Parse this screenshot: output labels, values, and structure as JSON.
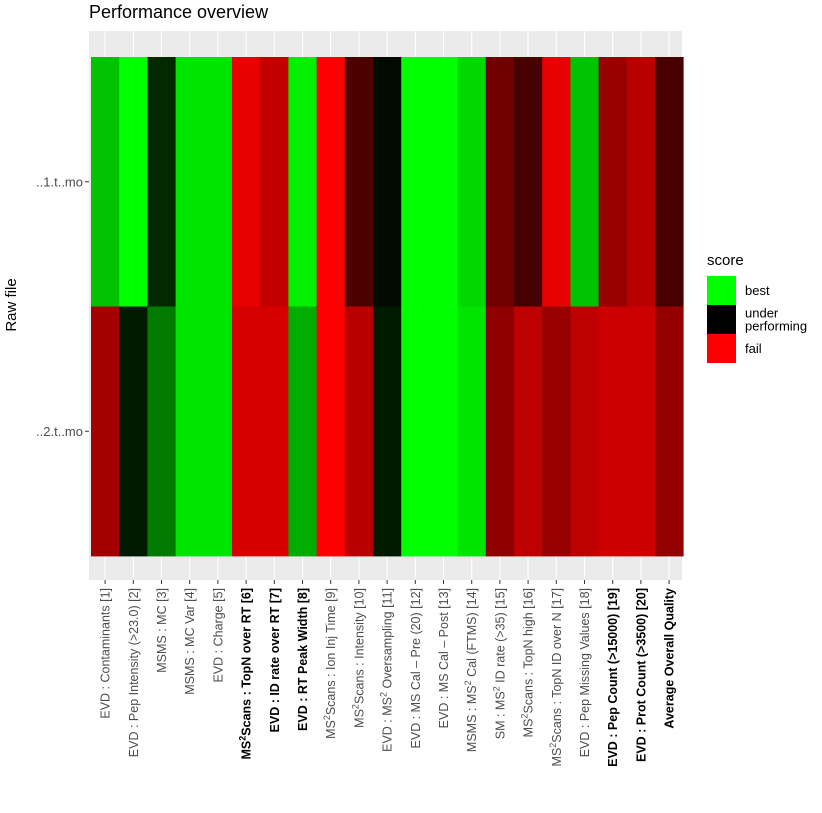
{
  "chart_data": {
    "type": "heatmap",
    "title": "Performance overview",
    "ylabel": "Raw file",
    "xlabel": "",
    "rows": [
      "..1.t..mo",
      "..2.t..mo"
    ],
    "columns": [
      {
        "pre": "EVD : Contaminants [1]",
        "sup": "",
        "post": "",
        "bold": false
      },
      {
        "pre": "EVD : Pep Intensity (>23.0) [2]",
        "sup": "",
        "post": "",
        "bold": false
      },
      {
        "pre": "MSMS : MC [3]",
        "sup": "",
        "post": "",
        "bold": false
      },
      {
        "pre": "MSMS : MC Var [4]",
        "sup": "",
        "post": "",
        "bold": false
      },
      {
        "pre": "EVD : Charge [5]",
        "sup": "",
        "post": "",
        "bold": false
      },
      {
        "pre": "MS",
        "sup": "2",
        "post": "Scans : TopN over RT [6]",
        "bold": true
      },
      {
        "pre": "EVD : ID rate over RT [7]",
        "sup": "",
        "post": "",
        "bold": true
      },
      {
        "pre": "EVD : RT Peak Width [8]",
        "sup": "",
        "post": "",
        "bold": true
      },
      {
        "pre": "MS",
        "sup": "2",
        "post": "Scans : Ion Inj Time [9]",
        "bold": false
      },
      {
        "pre": "MS",
        "sup": "2",
        "post": "Scans : Intensity [10]",
        "bold": false
      },
      {
        "pre": "EVD : MS",
        "sup": "2",
        "post": " Oversampling [11]",
        "bold": false
      },
      {
        "pre": "EVD : MS Cal – Pre (20) [12]",
        "sup": "",
        "post": "",
        "bold": false
      },
      {
        "pre": "EVD : MS Cal – Post [13]",
        "sup": "",
        "post": "",
        "bold": false
      },
      {
        "pre": "MSMS : MS",
        "sup": "2",
        "post": " Cal (FTMS) [14]",
        "bold": false
      },
      {
        "pre": "SM : MS",
        "sup": "2",
        "post": " ID rate (>35) [15]",
        "bold": false
      },
      {
        "pre": "MS",
        "sup": "2",
        "post": "Scans : TopN high [16]",
        "bold": false
      },
      {
        "pre": "MS",
        "sup": "2",
        "post": "Scans : TopN ID over N [17]",
        "bold": false
      },
      {
        "pre": "EVD : Pep Missing Values [18]",
        "sup": "",
        "post": "",
        "bold": false
      },
      {
        "pre": "EVD : Pep Count (>15000) [19]",
        "sup": "",
        "post": "",
        "bold": true
      },
      {
        "pre": "EVD : Prot Count (>3500) [20]",
        "sup": "",
        "post": "",
        "bold": true
      },
      {
        "pre": "Average Overall Quality",
        "sup": "",
        "post": "",
        "bold": true
      }
    ],
    "values": [
      [
        0.88,
        1.0,
        0.58,
        0.95,
        0.95,
        0.05,
        0.12,
        0.97,
        0.0,
        0.35,
        0.52,
        1.0,
        1.0,
        0.92,
        0.28,
        0.36,
        0.05,
        0.88,
        0.2,
        0.14,
        0.36
      ],
      [
        0.18,
        0.55,
        0.74,
        0.95,
        0.95,
        0.08,
        0.08,
        0.84,
        0.0,
        0.14,
        0.55,
        1.0,
        1.0,
        0.95,
        0.22,
        0.13,
        0.2,
        0.13,
        0.1,
        0.1,
        0.21
      ]
    ],
    "value_range": [
      0,
      1
    ],
    "legend": {
      "title": "score",
      "position": "right",
      "entries": [
        {
          "label": "best",
          "color": "#00ff00"
        },
        {
          "label": "under\nperforming",
          "color": "#000000"
        },
        {
          "label": "fail",
          "color": "#ff0000"
        }
      ]
    },
    "colors": {
      "panel": "#ebebeb",
      "grid": "#ffffff",
      "axis_text": "#4d4d4d"
    }
  }
}
